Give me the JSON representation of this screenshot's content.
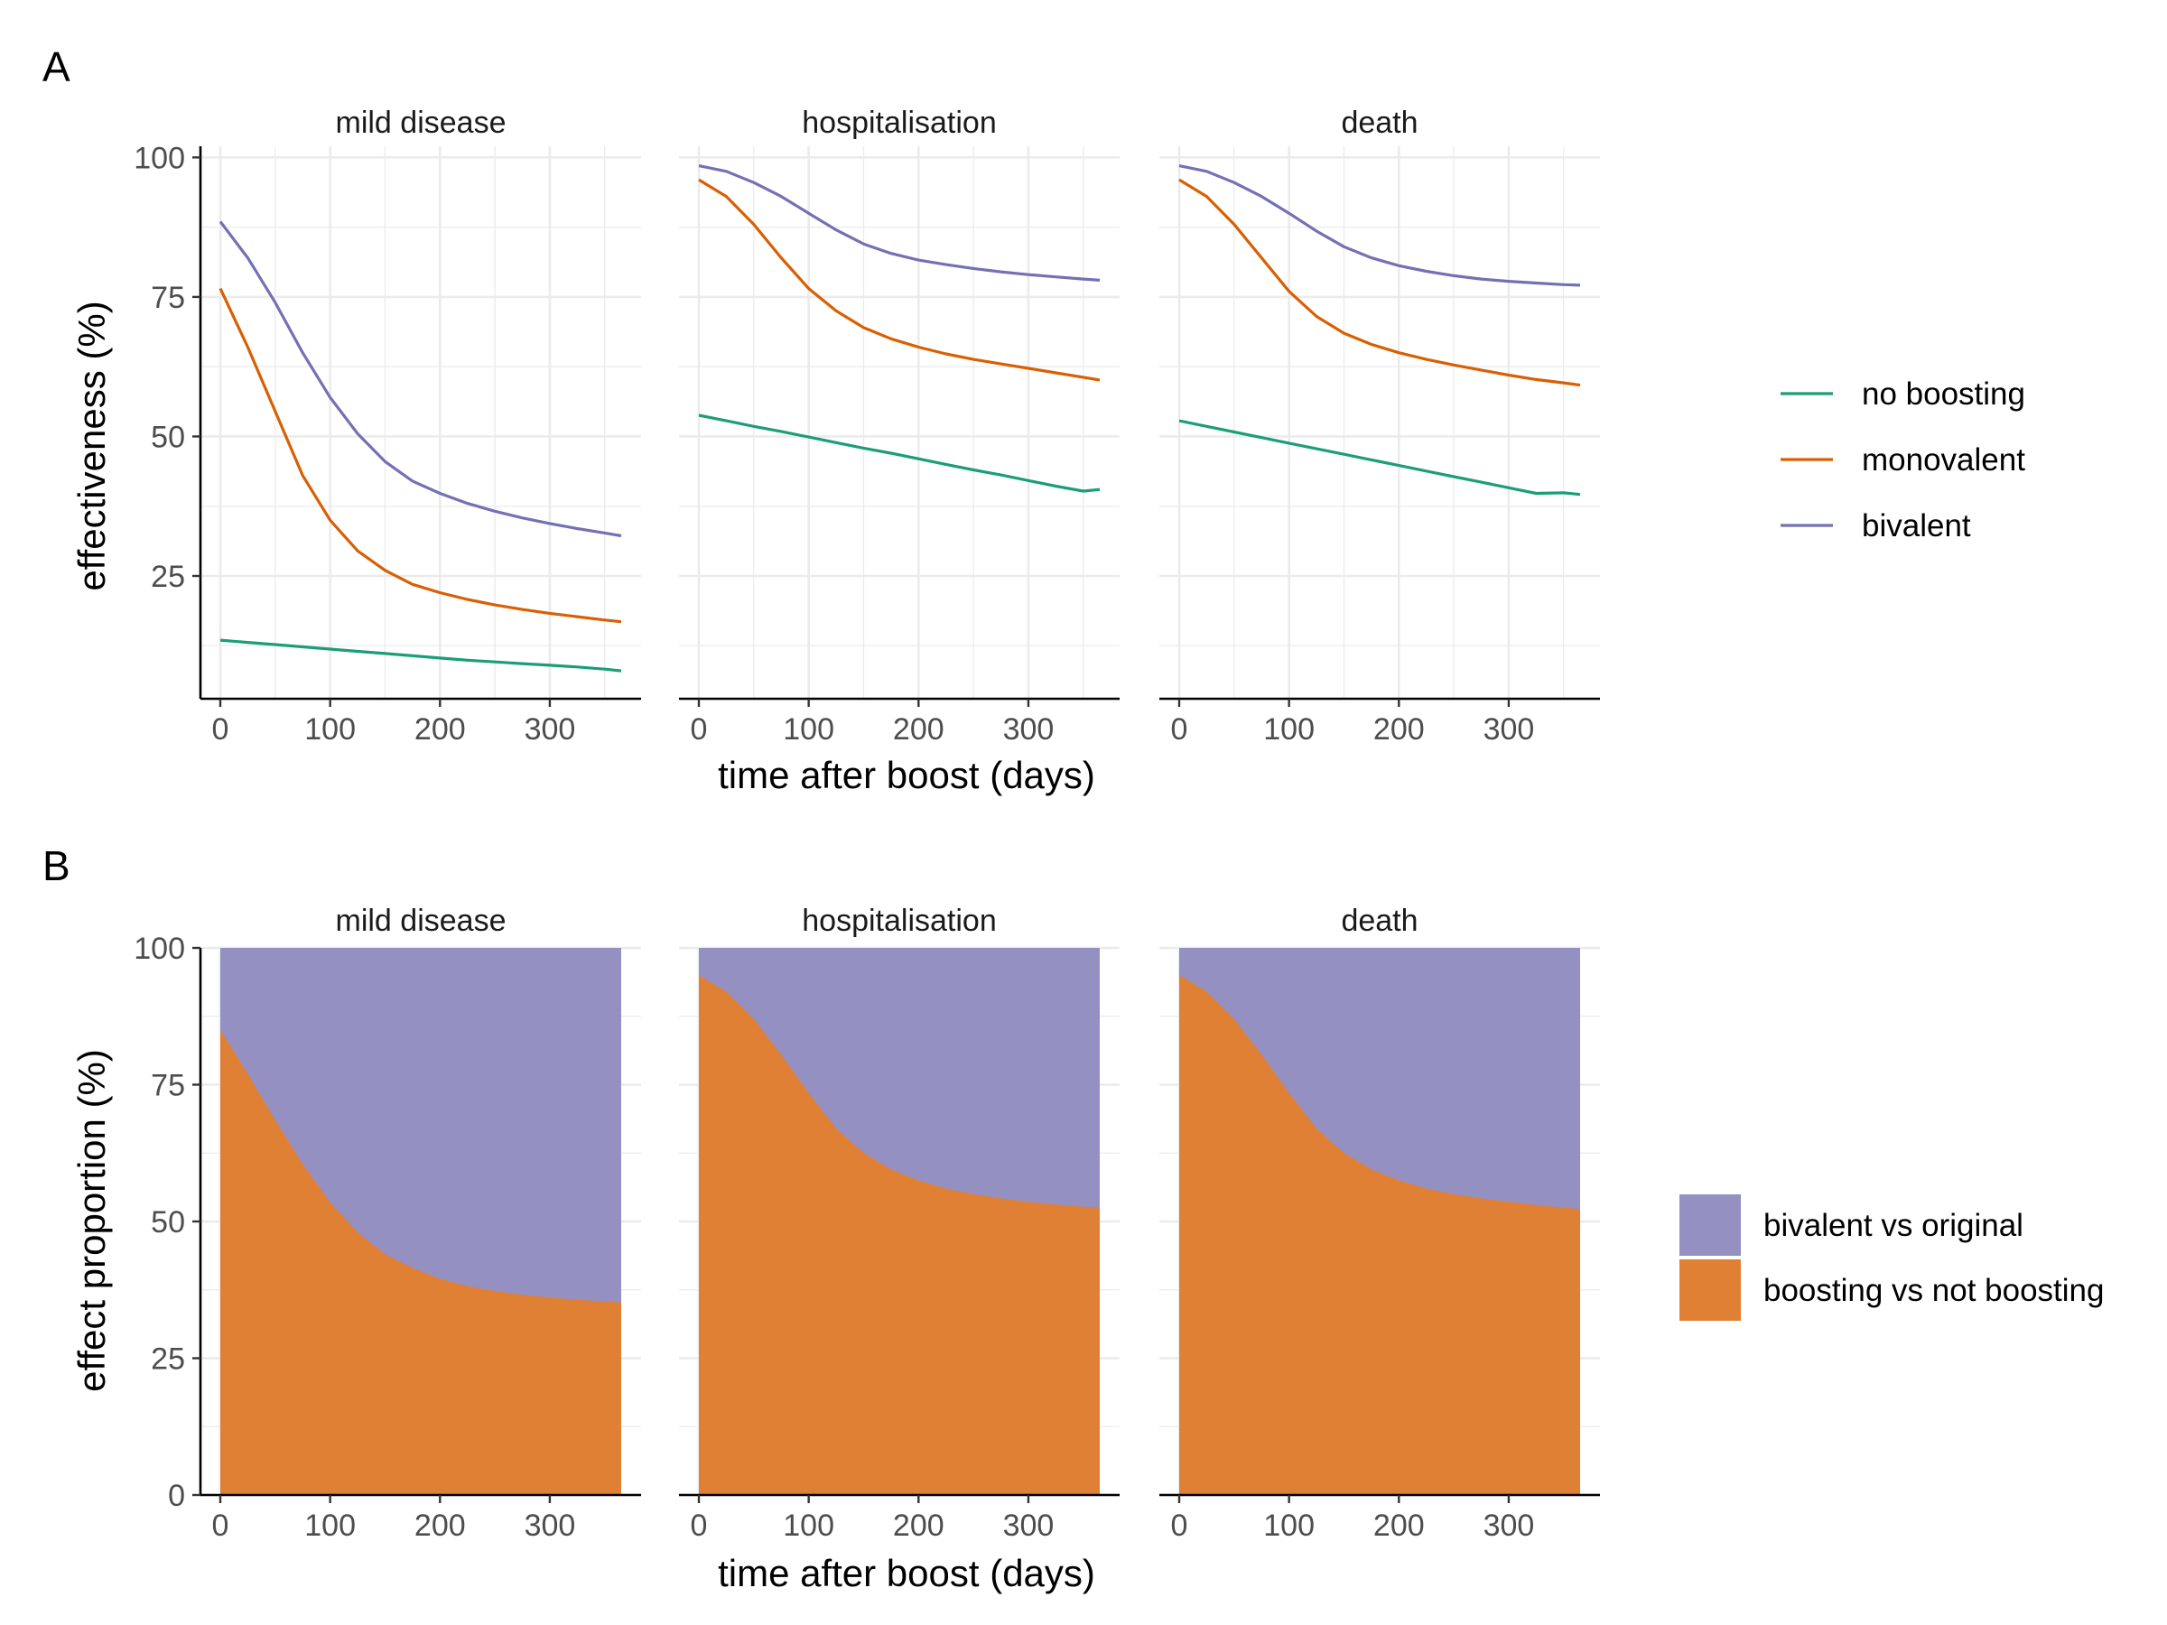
{
  "panel_a_label": "A",
  "panel_b_label": "B",
  "chart_data": [
    {
      "type": "line",
      "panel": "A",
      "facets": [
        "mild disease",
        "hospitalisation",
        "death"
      ],
      "xlabel": "time after boost (days)",
      "ylabel": "effectiveness (%)",
      "x_ticks": [
        0,
        100,
        200,
        300
      ],
      "y_ticks": [
        25,
        50,
        75,
        100
      ],
      "xlim": [
        0,
        365
      ],
      "ylim": [
        3,
        102
      ],
      "grid": true,
      "legend_position": "right",
      "x": [
        0,
        25,
        50,
        75,
        100,
        125,
        150,
        175,
        200,
        225,
        250,
        275,
        300,
        325,
        350,
        365
      ],
      "series": [
        {
          "name": "no boosting",
          "color": "#1B9E77",
          "values": {
            "mild disease": [
              13.5,
              13.1,
              12.7,
              12.3,
              11.9,
              11.5,
              11.1,
              10.7,
              10.3,
              9.9,
              9.6,
              9.3,
              9.0,
              8.7,
              8.3,
              8.0
            ],
            "hospitalisation": [
              53.8,
              52.8,
              51.8,
              50.9,
              49.9,
              48.9,
              47.9,
              47.0,
              46.0,
              45.0,
              44.0,
              43.1,
              42.1,
              41.1,
              40.2,
              40.5
            ],
            "death": [
              52.8,
              51.8,
              50.8,
              49.8,
              48.8,
              47.8,
              46.8,
              45.8,
              44.8,
              43.8,
              42.8,
              41.8,
              40.8,
              39.8,
              39.9,
              39.6
            ]
          }
        },
        {
          "name": "monovalent",
          "color": "#D95F02",
          "values": {
            "mild disease": [
              76.5,
              66.0,
              54.5,
              43.0,
              35.0,
              29.5,
              26.0,
              23.5,
              22.0,
              20.8,
              19.8,
              19.0,
              18.3,
              17.7,
              17.1,
              16.8
            ],
            "hospitalisation": [
              96.0,
              93.0,
              88.0,
              82.0,
              76.5,
              72.5,
              69.5,
              67.5,
              66.0,
              64.8,
              63.8,
              63.0,
              62.2,
              61.4,
              60.6,
              60.1
            ],
            "death": [
              96.0,
              93.0,
              88.0,
              82.0,
              76.0,
              71.5,
              68.5,
              66.5,
              65.0,
              63.8,
              62.8,
              61.9,
              61.0,
              60.2,
              59.6,
              59.2
            ]
          }
        },
        {
          "name": "bivalent",
          "color": "#7570B3",
          "values": {
            "mild disease": [
              88.5,
              82.0,
              74.0,
              65.0,
              57.0,
              50.5,
              45.5,
              42.0,
              39.8,
              38.0,
              36.6,
              35.4,
              34.4,
              33.5,
              32.7,
              32.2
            ],
            "hospitalisation": [
              98.5,
              97.5,
              95.5,
              93.0,
              90.0,
              87.0,
              84.5,
              82.8,
              81.6,
              80.8,
              80.1,
              79.5,
              79.0,
              78.6,
              78.2,
              78.0
            ],
            "death": [
              98.5,
              97.5,
              95.5,
              93.0,
              90.0,
              86.8,
              84.0,
              82.0,
              80.6,
              79.6,
              78.8,
              78.2,
              77.8,
              77.5,
              77.2,
              77.1
            ]
          }
        }
      ]
    },
    {
      "type": "area",
      "panel": "B",
      "stacked": true,
      "facets": [
        "mild disease",
        "hospitalisation",
        "death"
      ],
      "xlabel": "time after boost (days)",
      "ylabel": "effect proportion (%)",
      "x_ticks": [
        0,
        100,
        200,
        300
      ],
      "y_ticks": [
        0,
        25,
        50,
        75,
        100
      ],
      "xlim": [
        0,
        365
      ],
      "ylim": [
        0,
        100
      ],
      "grid": true,
      "legend_position": "right",
      "x": [
        0,
        25,
        50,
        75,
        100,
        125,
        150,
        175,
        200,
        225,
        250,
        275,
        300,
        325,
        350,
        365
      ],
      "series": [
        {
          "name": "bivalent vs original",
          "color": "#9490C2",
          "note_values": "remainder to 100"
        },
        {
          "name": "boosting vs not boosting",
          "color": "#E08035",
          "values": {
            "mild disease": [
              85.0,
              77.0,
              68.5,
              60.5,
              53.5,
              48.0,
              44.0,
              41.5,
              39.5,
              38.2,
              37.3,
              36.6,
              36.1,
              35.7,
              35.4,
              35.2
            ],
            "hospitalisation": [
              95.0,
              92.0,
              87.0,
              80.5,
              73.5,
              67.0,
              62.5,
              59.5,
              57.5,
              56.0,
              55.0,
              54.2,
              53.6,
              53.1,
              52.7,
              52.5
            ],
            "death": [
              95.0,
              92.0,
              87.0,
              80.5,
              73.5,
              67.0,
              62.5,
              59.5,
              57.5,
              56.0,
              55.0,
              54.2,
              53.6,
              53.0,
              52.5,
              52.3
            ]
          }
        }
      ]
    }
  ]
}
